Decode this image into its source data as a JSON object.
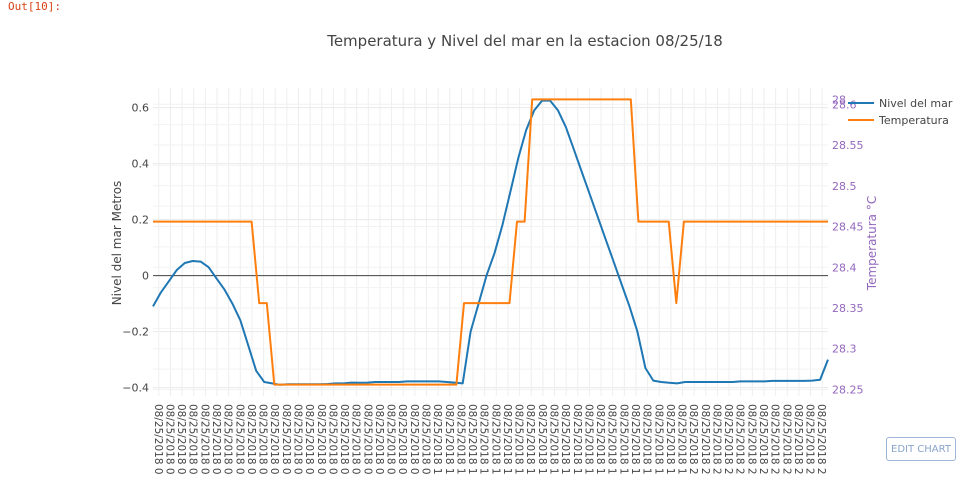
{
  "notebook": {
    "out_prompt": "Out[10]:"
  },
  "edit_button": {
    "label": "EDIT CHART"
  },
  "chart_data": {
    "type": "line",
    "title": "Temperatura y Nivel del mar en la estacion 08/25/18",
    "ylabel": "Nivel del mar Metros",
    "y2label": "Temperatura °C",
    "ylim": [
      -0.43,
      0.67
    ],
    "y2lim": [
      28.242,
      28.62
    ],
    "yticks": [
      -0.4,
      -0.2,
      0,
      0.2,
      0.4,
      0.6
    ],
    "y2ticks": [
      28.25,
      28.3,
      28.35,
      28.4,
      28.45,
      28.5,
      28.55,
      28.6
    ],
    "ytick_labels": [
      "−0.4",
      "−0.2",
      "0",
      "0.2",
      "0.4",
      "0.6"
    ],
    "y2tick_labels": [
      "28.25",
      "28.3",
      "28.35",
      "28.4",
      "28.45",
      "28.5",
      "28.55",
      "28.6"
    ],
    "y2top_label": "28",
    "zero_line": true,
    "grid": true,
    "legend_position": "top-right",
    "colors": {
      "sea": "#1f77b4",
      "temp": "#ff7f0e",
      "y2axis": "#9467bd"
    },
    "x_tick_labels": [
      "08/25/2018 0",
      "08/25/2018 0",
      "08/25/2018 0",
      "08/25/2018 0",
      "08/25/2018 0",
      "08/25/2018 0",
      "08/25/2018 0",
      "08/25/2018 0",
      "08/25/2018 0",
      "08/25/2018 0",
      "08/25/2018 0",
      "08/25/2018 0",
      "08/25/2018 0",
      "08/25/2018 0",
      "08/25/2018 0",
      "08/25/2018 0",
      "08/25/2018 0",
      "08/25/2018 0",
      "08/25/2018 0",
      "08/25/2018 0",
      "08/25/2018 0",
      "08/25/2018 0",
      "08/25/2018 0",
      "08/25/2018 0",
      "08/25/2018 1",
      "08/25/2018 1",
      "08/25/2018 1",
      "08/25/2018 1",
      "08/25/2018 1",
      "08/25/2018 1",
      "08/25/2018 1",
      "08/25/2018 1",
      "08/25/2018 1",
      "08/25/2018 1",
      "08/25/2018 1",
      "08/25/2018 1",
      "08/25/2018 1",
      "08/25/2018 1",
      "08/25/2018 1",
      "08/25/2018 1",
      "08/25/2018 1",
      "08/25/2018 1",
      "08/25/2018 1",
      "08/25/2018 1",
      "08/25/2018 1",
      "08/25/2018 1",
      "08/25/2018 2",
      "08/25/2018 2",
      "08/25/2018 2",
      "08/25/2018 2",
      "08/25/2018 2",
      "08/25/2018 2",
      "08/25/2018 2",
      "08/25/2018 2",
      "08/25/2018 2",
      "08/25/2018 2",
      "08/25/2018 2",
      "08/25/2018 2"
    ],
    "series": [
      {
        "name": "Nivel del mar",
        "axis": "y",
        "values": [
          -0.11,
          -0.06,
          -0.02,
          0.02,
          0.045,
          0.052,
          0.05,
          0.03,
          -0.01,
          -0.05,
          -0.1,
          -0.16,
          -0.25,
          -0.34,
          -0.38,
          -0.385,
          -0.39,
          -0.388,
          -0.388,
          -0.388,
          -0.388,
          -0.388,
          -0.387,
          -0.385,
          -0.385,
          -0.382,
          -0.383,
          -0.382,
          -0.38,
          -0.38,
          -0.38,
          -0.38,
          -0.378,
          -0.378,
          -0.378,
          -0.378,
          -0.378,
          -0.38,
          -0.382,
          -0.385,
          -0.2,
          -0.1,
          0.0,
          0.08,
          0.18,
          0.3,
          0.42,
          0.52,
          0.59,
          0.625,
          0.625,
          0.59,
          0.53,
          0.45,
          0.37,
          0.29,
          0.21,
          0.13,
          0.05,
          -0.03,
          -0.11,
          -0.2,
          -0.33,
          -0.375,
          -0.38,
          -0.383,
          -0.385,
          -0.38,
          -0.38,
          -0.38,
          -0.38,
          -0.38,
          -0.38,
          -0.38,
          -0.378,
          -0.378,
          -0.378,
          -0.378,
          -0.376,
          -0.376,
          -0.376,
          -0.376,
          -0.376,
          -0.375,
          -0.372,
          -0.3
        ]
      },
      {
        "name": "Temperatura",
        "axis": "y2",
        "values": [
          28.456,
          28.456,
          28.456,
          28.456,
          28.456,
          28.456,
          28.456,
          28.456,
          28.456,
          28.456,
          28.456,
          28.456,
          28.456,
          28.456,
          28.356,
          28.356,
          28.256,
          28.256,
          28.256,
          28.256,
          28.256,
          28.256,
          28.256,
          28.256,
          28.256,
          28.256,
          28.256,
          28.256,
          28.256,
          28.256,
          28.256,
          28.256,
          28.256,
          28.256,
          28.256,
          28.256,
          28.256,
          28.256,
          28.256,
          28.256,
          28.256,
          28.356,
          28.356,
          28.356,
          28.356,
          28.356,
          28.356,
          28.356,
          28.456,
          28.456,
          28.606,
          28.606,
          28.606,
          28.606,
          28.606,
          28.606,
          28.606,
          28.606,
          28.606,
          28.606,
          28.606,
          28.606,
          28.606,
          28.606,
          28.456,
          28.456,
          28.456,
          28.456,
          28.456,
          28.356,
          28.456,
          28.456,
          28.456,
          28.456,
          28.456,
          28.456,
          28.456,
          28.456,
          28.456,
          28.456,
          28.456,
          28.456,
          28.456,
          28.456,
          28.456,
          28.456,
          28.456,
          28.456,
          28.456,
          28.456
        ]
      }
    ]
  }
}
